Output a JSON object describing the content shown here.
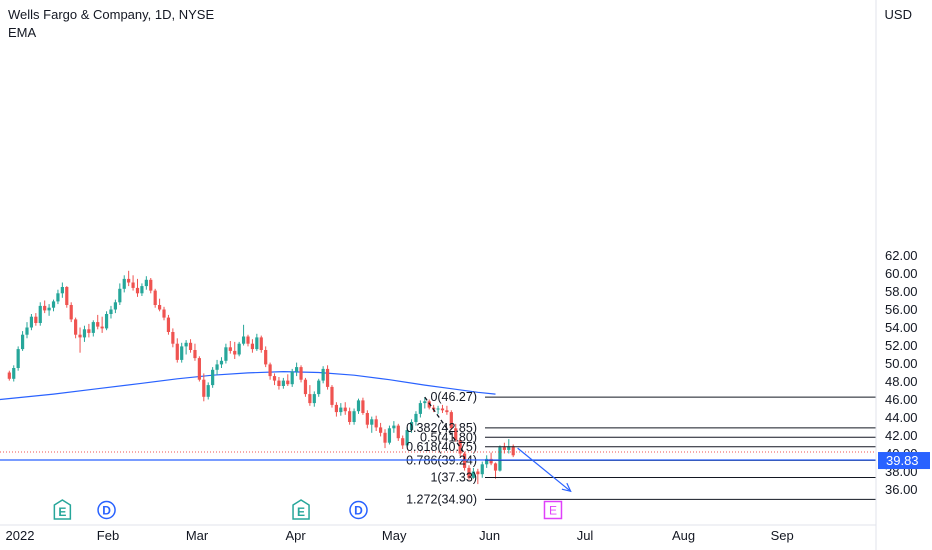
{
  "header": {
    "title": "Wells Fargo & Company, 1D, NYSE",
    "indicator": "EMA",
    "currency": "USD"
  },
  "chart_data": {
    "type": "candlestick",
    "title": "Wells Fargo & Company, 1D, NYSE",
    "ylabel": "USD",
    "ylim": [
      34.3,
      61.1
    ],
    "y_ticks": [
      "36.00",
      "38.00",
      "40.00",
      "42.00",
      "44.00",
      "46.00",
      "48.00",
      "50.00",
      "52.00",
      "54.00",
      "56.00",
      "58.00",
      "60.00",
      "62.00"
    ],
    "x_ticks": [
      {
        "label": "2022",
        "date": "2022-01-03"
      },
      {
        "label": "Feb",
        "date": "2022-02-01"
      },
      {
        "label": "Mar",
        "date": "2022-03-01"
      },
      {
        "label": "Apr",
        "date": "2022-04-01"
      },
      {
        "label": "May",
        "date": "2022-05-02"
      },
      {
        "label": "Jun",
        "date": "2022-06-01"
      },
      {
        "label": "Jul",
        "date": "2022-07-01"
      },
      {
        "label": "Aug",
        "date": "2022-08-01"
      },
      {
        "label": "Sep",
        "date": "2022-09-01"
      }
    ],
    "last_price": "39.83",
    "colors": {
      "up": "#26a69a",
      "down": "#ef5350",
      "ema": "#2962ff",
      "fib": "#131722",
      "price_line": "#2962ff",
      "event_badge": "#26a69a",
      "dividend_badge": "#2962ff",
      "earnings_badge": "#e040fb"
    },
    "candles": [
      [
        49.0,
        49.2,
        48.1,
        48.3
      ],
      [
        48.3,
        49.8,
        48.0,
        49.5
      ],
      [
        49.5,
        51.9,
        49.2,
        51.6
      ],
      [
        51.6,
        53.6,
        51.4,
        53.2
      ],
      [
        53.2,
        54.6,
        52.8,
        54.0
      ],
      [
        54.0,
        55.5,
        53.7,
        55.2
      ],
      [
        55.2,
        55.6,
        54.2,
        54.5
      ],
      [
        54.5,
        56.8,
        54.2,
        56.4
      ],
      [
        56.4,
        57.0,
        55.6,
        55.9
      ],
      [
        55.9,
        56.6,
        55.3,
        56.2
      ],
      [
        56.2,
        57.1,
        55.8,
        56.9
      ],
      [
        56.9,
        58.2,
        56.6,
        57.8
      ],
      [
        57.8,
        59.0,
        57.3,
        58.5
      ],
      [
        58.5,
        58.6,
        56.2,
        56.5
      ],
      [
        56.5,
        56.8,
        54.6,
        54.9
      ],
      [
        54.9,
        55.1,
        52.8,
        53.2
      ],
      [
        53.2,
        54.0,
        51.2,
        52.9
      ],
      [
        52.9,
        54.2,
        52.4,
        53.8
      ],
      [
        53.8,
        54.4,
        52.9,
        53.4
      ],
      [
        53.4,
        54.8,
        53.0,
        54.6
      ],
      [
        54.6,
        55.4,
        53.8,
        54.1
      ],
      [
        54.1,
        55.2,
        53.4,
        53.9
      ],
      [
        53.9,
        55.8,
        53.7,
        55.5
      ],
      [
        55.5,
        56.4,
        55.0,
        56.0
      ],
      [
        56.0,
        57.1,
        55.6,
        56.8
      ],
      [
        56.8,
        58.9,
        56.5,
        58.3
      ],
      [
        58.3,
        59.8,
        57.9,
        59.4
      ],
      [
        59.4,
        60.3,
        58.6,
        59.0
      ],
      [
        59.0,
        59.8,
        58.1,
        58.4
      ],
      [
        58.4,
        59.4,
        57.4,
        57.8
      ],
      [
        57.8,
        58.9,
        57.5,
        58.6
      ],
      [
        58.6,
        59.7,
        58.2,
        59.3
      ],
      [
        59.3,
        59.5,
        57.8,
        58.1
      ],
      [
        58.1,
        58.3,
        56.2,
        56.5
      ],
      [
        56.5,
        57.2,
        55.8,
        56.0
      ],
      [
        56.0,
        56.3,
        54.8,
        55.1
      ],
      [
        55.1,
        55.4,
        53.2,
        53.5
      ],
      [
        53.5,
        53.9,
        51.8,
        52.2
      ],
      [
        52.2,
        52.8,
        50.1,
        50.4
      ],
      [
        50.4,
        52.3,
        50.1,
        51.9
      ],
      [
        51.9,
        52.6,
        51.0,
        52.3
      ],
      [
        52.3,
        52.7,
        51.2,
        51.5
      ],
      [
        51.5,
        52.2,
        50.3,
        50.6
      ],
      [
        50.6,
        50.8,
        48.0,
        48.2
      ],
      [
        48.2,
        48.9,
        45.8,
        46.3
      ],
      [
        46.3,
        47.9,
        46.0,
        47.6
      ],
      [
        47.6,
        49.6,
        47.3,
        49.3
      ],
      [
        49.3,
        50.4,
        48.7,
        49.9
      ],
      [
        49.9,
        50.7,
        49.5,
        50.3
      ],
      [
        50.3,
        52.2,
        50.0,
        51.8
      ],
      [
        51.8,
        52.5,
        51.1,
        51.4
      ],
      [
        51.4,
        52.4,
        50.5,
        51.0
      ],
      [
        51.0,
        52.4,
        50.8,
        52.2
      ],
      [
        52.2,
        54.3,
        52.0,
        53.0
      ],
      [
        53.0,
        53.2,
        51.9,
        52.2
      ],
      [
        52.2,
        52.7,
        51.2,
        51.6
      ],
      [
        51.6,
        53.3,
        51.4,
        52.9
      ],
      [
        52.9,
        53.1,
        51.2,
        51.5
      ],
      [
        51.5,
        51.9,
        49.6,
        49.9
      ],
      [
        49.9,
        50.1,
        48.2,
        48.6
      ],
      [
        48.6,
        48.9,
        47.6,
        48.1
      ],
      [
        48.1,
        48.5,
        47.1,
        47.5
      ],
      [
        47.5,
        48.4,
        47.2,
        48.1
      ],
      [
        48.1,
        48.8,
        47.5,
        47.7
      ],
      [
        47.7,
        49.4,
        47.4,
        49.1
      ],
      [
        49.1,
        50.1,
        48.6,
        49.6
      ],
      [
        49.6,
        49.8,
        47.9,
        48.2
      ],
      [
        48.2,
        48.4,
        46.3,
        46.6
      ],
      [
        46.6,
        47.6,
        45.3,
        45.6
      ],
      [
        45.6,
        46.9,
        45.2,
        46.6
      ],
      [
        46.6,
        48.3,
        46.3,
        48.1
      ],
      [
        48.1,
        49.7,
        47.8,
        49.4
      ],
      [
        49.4,
        49.8,
        47.1,
        47.4
      ],
      [
        47.4,
        47.6,
        45.1,
        45.4
      ],
      [
        45.4,
        45.7,
        44.1,
        44.6
      ],
      [
        44.6,
        45.6,
        44.2,
        45.1
      ],
      [
        45.1,
        45.7,
        44.3,
        44.7
      ],
      [
        44.7,
        45.1,
        43.2,
        43.5
      ],
      [
        43.5,
        45.0,
        43.2,
        44.7
      ],
      [
        44.7,
        46.1,
        44.4,
        45.9
      ],
      [
        45.9,
        46.2,
        44.3,
        44.5
      ],
      [
        44.5,
        44.8,
        42.8,
        43.2
      ],
      [
        43.2,
        44.1,
        42.3,
        43.8
      ],
      [
        43.8,
        44.2,
        42.5,
        42.9
      ],
      [
        42.9,
        43.4,
        41.9,
        42.3
      ],
      [
        42.3,
        42.7,
        40.6,
        41.2
      ],
      [
        41.2,
        43.1,
        41.0,
        42.8
      ],
      [
        42.8,
        43.6,
        42.3,
        43.1
      ],
      [
        43.1,
        43.3,
        41.4,
        41.7
      ],
      [
        41.7,
        42.0,
        40.5,
        40.9
      ],
      [
        40.9,
        42.9,
        40.7,
        42.6
      ],
      [
        42.6,
        43.8,
        42.3,
        43.5
      ],
      [
        43.5,
        44.7,
        43.1,
        44.4
      ],
      [
        44.4,
        45.9,
        44.0,
        45.6
      ],
      [
        45.6,
        46.27,
        45.0,
        45.8
      ],
      [
        45.8,
        46.0,
        44.9,
        45.1
      ],
      [
        45.1,
        45.4,
        44.6,
        44.9
      ],
      [
        44.9,
        45.3,
        44.4,
        45.0
      ],
      [
        45.0,
        45.4,
        44.5,
        44.8
      ],
      [
        44.8,
        45.3,
        44.3,
        44.6
      ],
      [
        44.6,
        44.8,
        42.6,
        42.8
      ],
      [
        42.8,
        43.3,
        41.3,
        41.5
      ],
      [
        41.5,
        41.6,
        39.7,
        40.0
      ],
      [
        40.0,
        40.2,
        38.1,
        38.4
      ],
      [
        38.4,
        38.7,
        37.1,
        37.3
      ],
      [
        37.3,
        38.4,
        37.2,
        38.0
      ],
      [
        38.0,
        38.3,
        36.6,
        37.7
      ],
      [
        37.7,
        39.1,
        37.3,
        38.8
      ],
      [
        38.8,
        39.8,
        38.4,
        39.4
      ],
      [
        39.4,
        40.1,
        38.7,
        38.9
      ],
      [
        38.9,
        39.0,
        37.2,
        38.1
      ],
      [
        38.1,
        40.9,
        38.0,
        40.7
      ],
      [
        40.7,
        41.2,
        40.0,
        40.4
      ],
      [
        40.4,
        41.6,
        40.0,
        40.8
      ],
      [
        40.8,
        41.0,
        39.6,
        39.8
      ]
    ],
    "ema": [
      [
        0,
        46.0
      ],
      [
        10,
        46.6
      ],
      [
        20,
        47.2
      ],
      [
        30,
        47.8
      ],
      [
        38,
        48.3
      ],
      [
        46,
        48.7
      ],
      [
        54,
        48.95
      ],
      [
        62,
        49.1
      ],
      [
        70,
        49.0
      ],
      [
        78,
        48.7
      ],
      [
        86,
        48.2
      ],
      [
        94,
        47.6
      ],
      [
        100,
        47.2
      ],
      [
        106,
        46.8
      ],
      [
        110,
        46.6
      ]
    ],
    "fib_levels": [
      {
        "label": "0(46.27)",
        "value": 46.27
      },
      {
        "label": "0.382(42.85)",
        "value": 42.85
      },
      {
        "label": "0.5(41.80)",
        "value": 41.8
      },
      {
        "label": "0.618(40.75)",
        "value": 40.75
      },
      {
        "label": "0.786(39.24)",
        "value": 39.24
      },
      {
        "label": "1(37.33)",
        "value": 37.33
      },
      {
        "label": "1.272(34.90)",
        "value": 34.9
      }
    ],
    "trend_line": {
      "from": [
        94,
        46.27
      ],
      "to": [
        103,
        40.0
      ]
    },
    "projection_arrow": {
      "from": [
        115,
        40.6
      ],
      "to": [
        127,
        35.8
      ]
    },
    "events": [
      {
        "label": "E",
        "kind": "event",
        "index": 12
      },
      {
        "label": "D",
        "kind": "dividend",
        "index": 22
      },
      {
        "label": "E",
        "kind": "event",
        "index": 66
      },
      {
        "label": "D",
        "kind": "dividend",
        "index": 79
      },
      {
        "label": "E",
        "kind": "earnings",
        "index": 123
      }
    ]
  }
}
